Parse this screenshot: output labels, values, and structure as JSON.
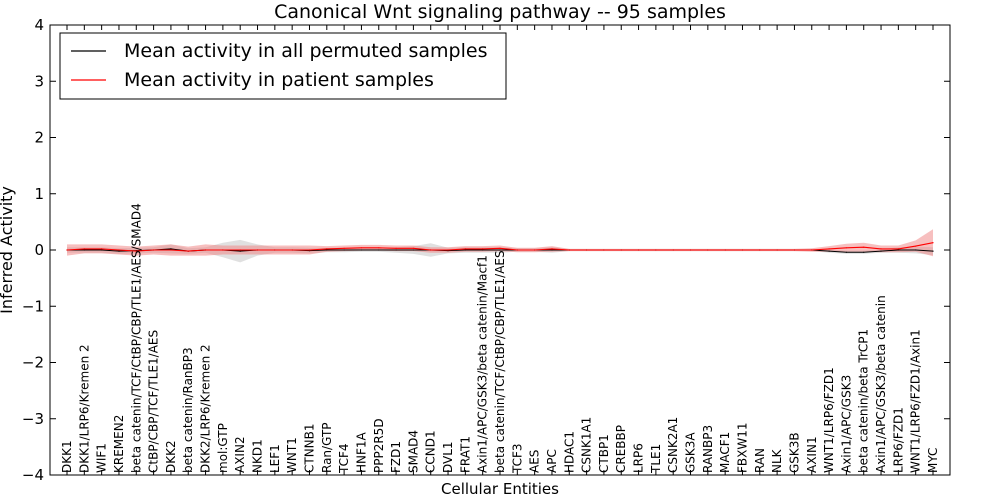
{
  "chart_data": {
    "type": "line",
    "title": "Canonical Wnt signaling pathway -- 95 samples",
    "xlabel": "Cellular Entities",
    "ylabel": "Inferred Activity",
    "ylim": [
      -4,
      4
    ],
    "yticks": [
      4,
      3,
      2,
      1,
      0,
      -1,
      -2,
      -3,
      -4
    ],
    "ytick_labels": [
      "4",
      "3",
      "2",
      "1",
      "0",
      "−1",
      "−2",
      "−3",
      "−4"
    ],
    "grid": false,
    "legend": {
      "location": "top-left",
      "entries": [
        {
          "label": "Mean activity in all permuted samples",
          "color": "#000000"
        },
        {
          "label": "Mean activity in patient samples",
          "color": "#ff0000"
        }
      ]
    },
    "categories": [
      "DKK1",
      "DKK1/LRP6/Kremen 2",
      "WIF1",
      "KREMEN2",
      "beta catenin/TCF/CtBP/CBP/TLE1/AES/SMAD4",
      "CtBP/CBP/TCF/TLE1/AES",
      "DKK2",
      "beta catenin/RanBP3",
      "DKK2/LRP6/Kremen 2",
      "mol:GTP",
      "AXIN2",
      "NKD1",
      "LEF1",
      "WNT1",
      "CTNNB1",
      "Ran/GTP",
      "TCF4",
      "HNF1A",
      "PPP2R5D",
      "FZD1",
      "SMAD4",
      "CCND1",
      "DVL1",
      "FRAT1",
      "Axin1/APC/GSK3/beta catenin/Macf1",
      "beta catenin/TCF/CtBP/CBP/TLE1/AES",
      "TCF3",
      "AES",
      "APC",
      "HDAC1",
      "CSNK1A1",
      "CTBP1",
      "CREBBP",
      "LRP6",
      "TLE1",
      "CSNK2A1",
      "GSK3A",
      "RANBP3",
      "MACF1",
      "FBXW11",
      "RAN",
      "NLK",
      "GSK3B",
      "AXIN1",
      "WNT1/LRP6/FZD1",
      "Axin1/APC/GSK3",
      "beta catenin/beta TrCP1",
      "Axin1/APC/GSK3/beta catenin",
      "LRP6/FZD1",
      "WNT1/LRP6/FZD1/Axin1",
      "MYC"
    ],
    "series": [
      {
        "name": "Mean activity in all permuted samples",
        "color": "#000000",
        "band_color": "#bbbbbb",
        "values": [
          0.0,
          0.0,
          0.0,
          -0.02,
          -0.01,
          0.0,
          0.02,
          -0.02,
          0.0,
          0.0,
          -0.02,
          0.0,
          0.0,
          0.0,
          -0.01,
          0.0,
          0.0,
          0.0,
          0.0,
          0.0,
          0.0,
          0.0,
          -0.01,
          0.0,
          0.0,
          0.0,
          0.0,
          0.0,
          0.0,
          0.0,
          0.0,
          0.0,
          0.0,
          0.0,
          0.0,
          0.0,
          0.0,
          0.0,
          0.0,
          0.0,
          0.0,
          0.0,
          0.0,
          0.0,
          -0.02,
          -0.04,
          -0.04,
          -0.02,
          0.0,
          0.0,
          -0.02
        ],
        "band": [
          0.05,
          0.05,
          0.05,
          0.05,
          0.05,
          0.05,
          0.08,
          0.05,
          0.05,
          0.13,
          0.2,
          0.1,
          0.05,
          0.05,
          0.05,
          0.04,
          0.04,
          0.03,
          0.03,
          0.05,
          0.07,
          0.12,
          0.05,
          0.05,
          0.05,
          0.05,
          0.03,
          0.03,
          0.05,
          0.02,
          0.02,
          0.02,
          0.02,
          0.02,
          0.02,
          0.02,
          0.02,
          0.02,
          0.02,
          0.02,
          0.02,
          0.02,
          0.02,
          0.02,
          0.03,
          0.03,
          0.03,
          0.03,
          0.05,
          0.06,
          0.07
        ]
      },
      {
        "name": "Mean activity in patient samples",
        "color": "#ff0000",
        "band_color": "#f08080",
        "values": [
          0.0,
          0.02,
          0.02,
          0.0,
          -0.02,
          0.0,
          0.0,
          -0.02,
          0.0,
          0.0,
          0.0,
          0.0,
          0.0,
          0.0,
          0.0,
          0.02,
          0.03,
          0.04,
          0.04,
          0.03,
          0.03,
          0.0,
          0.0,
          0.02,
          0.02,
          0.03,
          0.0,
          0.0,
          0.02,
          0.0,
          0.0,
          0.0,
          0.0,
          0.0,
          0.0,
          0.0,
          0.0,
          0.0,
          0.0,
          0.0,
          0.0,
          0.0,
          0.0,
          0.0,
          0.02,
          0.04,
          0.05,
          0.02,
          0.02,
          0.07,
          0.13
        ],
        "band": [
          0.1,
          0.08,
          0.08,
          0.08,
          0.08,
          0.08,
          0.1,
          0.08,
          0.1,
          0.08,
          0.08,
          0.08,
          0.08,
          0.08,
          0.08,
          0.05,
          0.05,
          0.05,
          0.05,
          0.05,
          0.05,
          0.05,
          0.05,
          0.05,
          0.05,
          0.05,
          0.04,
          0.04,
          0.05,
          0.02,
          0.02,
          0.02,
          0.02,
          0.02,
          0.02,
          0.02,
          0.02,
          0.02,
          0.02,
          0.02,
          0.02,
          0.02,
          0.02,
          0.03,
          0.05,
          0.07,
          0.08,
          0.06,
          0.06,
          0.1,
          0.24
        ]
      }
    ]
  }
}
